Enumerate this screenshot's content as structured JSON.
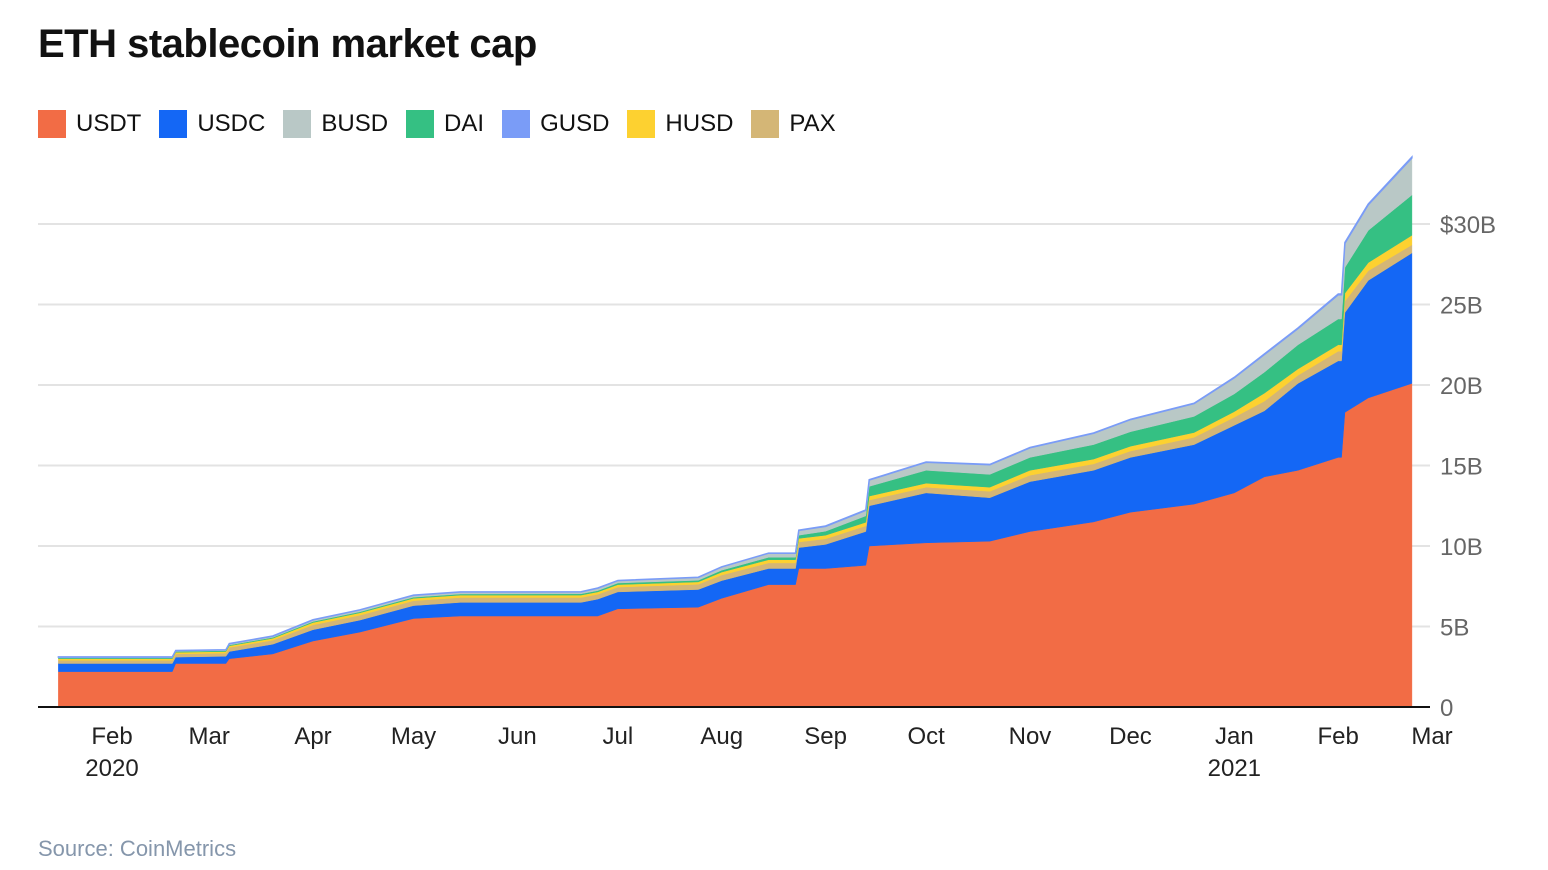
{
  "chart_data": {
    "type": "area",
    "stacked": true,
    "title": "ETH stablecoin market cap",
    "source": "Source: CoinMetrics",
    "legend_placement": "top-left",
    "grid": true,
    "ylim": [
      0,
      34
    ],
    "y_ticks": [
      {
        "value": 0,
        "label": "0"
      },
      {
        "value": 5,
        "label": "5B"
      },
      {
        "value": 10,
        "label": "10B"
      },
      {
        "value": 15,
        "label": "15B"
      },
      {
        "value": 20,
        "label": "20B"
      },
      {
        "value": 25,
        "label": "25B"
      },
      {
        "value": 30,
        "label": "$30B"
      }
    ],
    "x_ticks": [
      {
        "date": "2020-02-01",
        "label": "Feb",
        "year": "2020"
      },
      {
        "date": "2020-03-01",
        "label": "Mar"
      },
      {
        "date": "2020-04-01",
        "label": "Apr"
      },
      {
        "date": "2020-05-01",
        "label": "May"
      },
      {
        "date": "2020-06-01",
        "label": "Jun"
      },
      {
        "date": "2020-07-01",
        "label": "Jul"
      },
      {
        "date": "2020-08-01",
        "label": "Aug"
      },
      {
        "date": "2020-09-01",
        "label": "Sep"
      },
      {
        "date": "2020-10-01",
        "label": "Oct"
      },
      {
        "date": "2020-11-01",
        "label": "Nov"
      },
      {
        "date": "2020-12-01",
        "label": "Dec"
      },
      {
        "date": "2021-01-01",
        "label": "Jan",
        "year": "2021"
      },
      {
        "date": "2021-02-01",
        "label": "Feb"
      },
      {
        "date": "2021-03-01",
        "label": "Mar"
      }
    ],
    "legend": [
      {
        "name": "USDT",
        "color": "#f26c45"
      },
      {
        "name": "USDC",
        "color": "#1467f5"
      },
      {
        "name": "BUSD",
        "color": "#b9c8c6"
      },
      {
        "name": "DAI",
        "color": "#35c083"
      },
      {
        "name": "GUSD",
        "color": "#7a9cf7"
      },
      {
        "name": "HUSD",
        "color": "#fdd130"
      },
      {
        "name": "PAX",
        "color": "#d4b676"
      }
    ],
    "stack_order": [
      "USDT",
      "USDC",
      "PAX",
      "HUSD",
      "DAI",
      "BUSD",
      "GUSD"
    ],
    "dates": [
      "2020-01-16",
      "2020-02-19",
      "2020-02-20",
      "2020-03-06",
      "2020-03-07",
      "2020-03-20",
      "2020-04-01",
      "2020-04-15",
      "2020-05-01",
      "2020-05-15",
      "2020-06-20",
      "2020-06-25",
      "2020-07-01",
      "2020-07-25",
      "2020-08-01",
      "2020-08-15",
      "2020-08-23",
      "2020-08-24",
      "2020-09-01",
      "2020-09-13",
      "2020-09-14",
      "2020-10-01",
      "2020-10-20",
      "2020-11-01",
      "2020-11-20",
      "2020-12-01",
      "2020-12-20",
      "2021-01-01",
      "2021-01-10",
      "2021-01-20",
      "2021-02-01",
      "2021-02-02",
      "2021-02-03",
      "2021-02-10",
      "2021-02-23"
    ],
    "series": [
      {
        "name": "USDT",
        "values": [
          2.2,
          2.2,
          2.7,
          2.7,
          3.0,
          3.3,
          4.1,
          4.65,
          5.5,
          5.65,
          5.65,
          5.65,
          6.1,
          6.2,
          6.75,
          7.6,
          7.6,
          8.6,
          8.6,
          8.8,
          10.0,
          10.2,
          10.3,
          10.9,
          11.5,
          12.1,
          12.6,
          13.3,
          14.3,
          14.7,
          15.5,
          15.5,
          18.3,
          19.2,
          20.1
        ]
      },
      {
        "name": "USDC",
        "values": [
          0.5,
          0.5,
          0.4,
          0.45,
          0.45,
          0.6,
          0.7,
          0.75,
          0.8,
          0.85,
          0.85,
          1.05,
          1.05,
          1.1,
          1.1,
          1.0,
          1.0,
          1.3,
          1.5,
          2.1,
          2.5,
          3.1,
          2.7,
          3.1,
          3.2,
          3.4,
          3.7,
          4.2,
          4.1,
          5.4,
          6.0,
          6.0,
          6.2,
          7.3,
          8.1
        ]
      },
      {
        "name": "PAX",
        "values": [
          0.2,
          0.2,
          0.2,
          0.2,
          0.25,
          0.25,
          0.3,
          0.3,
          0.3,
          0.3,
          0.3,
          0.3,
          0.3,
          0.32,
          0.35,
          0.35,
          0.35,
          0.35,
          0.35,
          0.35,
          0.35,
          0.35,
          0.4,
          0.4,
          0.4,
          0.4,
          0.45,
          0.5,
          0.6,
          0.5,
          0.6,
          0.6,
          0.7,
          0.6,
          0.5
        ]
      },
      {
        "name": "HUSD",
        "values": [
          0.1,
          0.1,
          0.1,
          0.1,
          0.1,
          0.12,
          0.15,
          0.15,
          0.15,
          0.15,
          0.15,
          0.15,
          0.15,
          0.15,
          0.18,
          0.2,
          0.2,
          0.22,
          0.22,
          0.22,
          0.25,
          0.25,
          0.25,
          0.3,
          0.3,
          0.3,
          0.3,
          0.35,
          0.5,
          0.4,
          0.4,
          0.4,
          0.5,
          0.5,
          0.6
        ]
      },
      {
        "name": "DAI",
        "values": [
          0.05,
          0.05,
          0.05,
          0.05,
          0.05,
          0.05,
          0.06,
          0.06,
          0.07,
          0.07,
          0.08,
          0.08,
          0.1,
          0.1,
          0.12,
          0.15,
          0.15,
          0.2,
          0.25,
          0.4,
          0.6,
          0.8,
          0.8,
          0.8,
          0.9,
          0.9,
          1.0,
          1.1,
          1.3,
          1.5,
          1.6,
          1.6,
          1.6,
          2.0,
          2.5
        ]
      },
      {
        "name": "BUSD",
        "values": [
          0.05,
          0.05,
          0.05,
          0.05,
          0.08,
          0.08,
          0.1,
          0.12,
          0.12,
          0.12,
          0.12,
          0.15,
          0.15,
          0.18,
          0.2,
          0.25,
          0.25,
          0.3,
          0.3,
          0.35,
          0.4,
          0.5,
          0.6,
          0.6,
          0.7,
          0.75,
          0.8,
          1.0,
          1.1,
          1.0,
          1.5,
          1.5,
          1.5,
          1.6,
          2.3
        ]
      },
      {
        "name": "GUSD",
        "values": [
          0.01,
          0.01,
          0.01,
          0.01,
          0.01,
          0.01,
          0.01,
          0.01,
          0.01,
          0.01,
          0.01,
          0.01,
          0.01,
          0.01,
          0.01,
          0.01,
          0.01,
          0.02,
          0.02,
          0.02,
          0.02,
          0.02,
          0.02,
          0.02,
          0.02,
          0.02,
          0.02,
          0.03,
          0.04,
          0.04,
          0.05,
          0.05,
          0.05,
          0.05,
          0.06
        ]
      }
    ]
  }
}
